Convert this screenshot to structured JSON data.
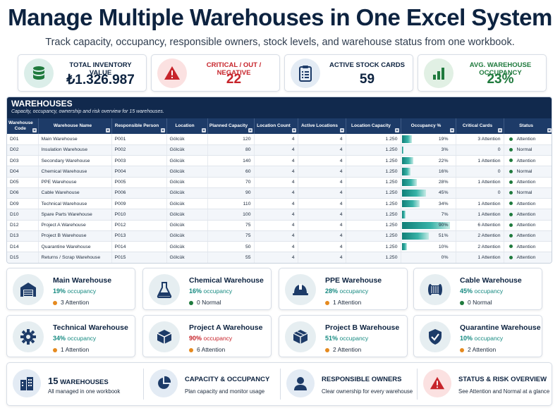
{
  "header": {
    "title": "Manage Multiple Warehouses in One Excel System",
    "subtitle": "Track capacity, occupancy, responsible owners, stock levels, and warehouse status from one workbook."
  },
  "kpis": [
    {
      "label": "TOTAL INVENTORY VALUE",
      "value": "₺1.326.987",
      "icon": "database-icon",
      "color": "#0d2340"
    },
    {
      "label": "CRITICAL / OUT / NEGATIVE",
      "value": "22",
      "icon": "warning-icon",
      "color": "#c7242b"
    },
    {
      "label": "ACTIVE STOCK CARDS",
      "value": "59",
      "icon": "clipboard-icon",
      "color": "#0d2340"
    },
    {
      "label": "AVG. WAREHOUSE OCCUPANCY",
      "value": "23%",
      "icon": "bar-chart-icon",
      "color": "#1f7a3d"
    }
  ],
  "table": {
    "title": "WAREHOUSES",
    "subtitle": "Capacity, occupancy, ownership and risk overview for 15 warehouses.",
    "columns": [
      "Warehouse Code",
      "Warehouse Name",
      "Responsible Person",
      "Location",
      "Planned Capacity",
      "Location Count",
      "Active Locations",
      "Location Capacity",
      "Occupancy %",
      "Critical Cards",
      "Status"
    ],
    "rows": [
      {
        "code": "D01",
        "name": "Main Warehouse",
        "person": "P001",
        "location": "Gölcük",
        "planned": "120",
        "loc_count": "4",
        "active": "4",
        "loc_cap": "1.250",
        "occ": "19%",
        "occ_value": 0.19,
        "critical": "3 Attention",
        "status": "Attention"
      },
      {
        "code": "D02",
        "name": "Insulation Warehouse",
        "person": "P002",
        "location": "Gölcük",
        "planned": "80",
        "loc_count": "4",
        "active": "4",
        "loc_cap": "1.250",
        "occ": "3%",
        "occ_value": 0.03,
        "critical": "0",
        "status": "Normal"
      },
      {
        "code": "D03",
        "name": "Secondary Warehouse",
        "person": "P003",
        "location": "Gölcük",
        "planned": "140",
        "loc_count": "4",
        "active": "4",
        "loc_cap": "1.250",
        "occ": "22%",
        "occ_value": 0.22,
        "critical": "1 Attention",
        "status": "Attention"
      },
      {
        "code": "D04",
        "name": "Chemical Warehouse",
        "person": "P004",
        "location": "Gölcük",
        "planned": "60",
        "loc_count": "4",
        "active": "4",
        "loc_cap": "1.250",
        "occ": "16%",
        "occ_value": 0.16,
        "critical": "0",
        "status": "Normal"
      },
      {
        "code": "D05",
        "name": "PPE Warehouse",
        "person": "P005",
        "location": "Gölcük",
        "planned": "70",
        "loc_count": "4",
        "active": "4",
        "loc_cap": "1.250",
        "occ": "28%",
        "occ_value": 0.28,
        "critical": "1 Attention",
        "status": "Attention"
      },
      {
        "code": "D06",
        "name": "Cable Warehouse",
        "person": "P006",
        "location": "Gölcük",
        "planned": "90",
        "loc_count": "4",
        "active": "4",
        "loc_cap": "1.250",
        "occ": "45%",
        "occ_value": 0.45,
        "critical": "0",
        "status": "Normal"
      },
      {
        "code": "D09",
        "name": "Technical Warehouse",
        "person": "P009",
        "location": "Gölcük",
        "planned": "110",
        "loc_count": "4",
        "active": "4",
        "loc_cap": "1.250",
        "occ": "34%",
        "occ_value": 0.34,
        "critical": "1 Attention",
        "status": "Attention"
      },
      {
        "code": "D10",
        "name": "Spare Parts Warehouse",
        "person": "P010",
        "location": "Gölcük",
        "planned": "100",
        "loc_count": "4",
        "active": "4",
        "loc_cap": "1.250",
        "occ": "7%",
        "occ_value": 0.07,
        "critical": "1 Attention",
        "status": "Attention"
      },
      {
        "code": "D12",
        "name": "Project A Warehouse",
        "person": "P012",
        "location": "Gölcük",
        "planned": "75",
        "loc_count": "4",
        "active": "4",
        "loc_cap": "1.250",
        "occ": "90%",
        "occ_value": 0.9,
        "critical": "6 Attention",
        "status": "Attention"
      },
      {
        "code": "D13",
        "name": "Project B Warehouse",
        "person": "P013",
        "location": "Gölcük",
        "planned": "75",
        "loc_count": "4",
        "active": "4",
        "loc_cap": "1.250",
        "occ": "51%",
        "occ_value": 0.51,
        "critical": "2 Attention",
        "status": "Attention"
      },
      {
        "code": "D14",
        "name": "Quarantine Warehouse",
        "person": "P014",
        "location": "Gölcük",
        "planned": "50",
        "loc_count": "4",
        "active": "4",
        "loc_cap": "1.250",
        "occ": "10%",
        "occ_value": 0.1,
        "critical": "2 Attention",
        "status": "Attention"
      },
      {
        "code": "D15",
        "name": "Returns / Scrap Warehouse",
        "person": "P015",
        "location": "Gölcük",
        "planned": "55",
        "loc_count": "4",
        "active": "4",
        "loc_cap": "1.250",
        "occ": "0%",
        "occ_value": 0.0,
        "critical": "1 Attention",
        "status": "Attention"
      }
    ]
  },
  "cards": [
    {
      "name": "Main Warehouse",
      "occ": "19%",
      "occ_label": "occupancy",
      "status": "3 Attention",
      "icon": "warehouse-icon",
      "status_color": "#e58a1f",
      "occ_color": "#168a81"
    },
    {
      "name": "Chemical Warehouse",
      "occ": "16%",
      "occ_label": "occupancy",
      "status": "0 Normal",
      "icon": "flask-icon",
      "status_color": "#1f7a3d",
      "occ_color": "#168a81"
    },
    {
      "name": "PPE Warehouse",
      "occ": "28%",
      "occ_label": "occupancy",
      "status": "1 Attention",
      "icon": "helmet-icon",
      "status_color": "#e58a1f",
      "occ_color": "#168a81"
    },
    {
      "name": "Cable Warehouse",
      "occ": "45%",
      "occ_label": "occupancy",
      "status": "0 Normal",
      "icon": "cable-reel-icon",
      "status_color": "#1f7a3d",
      "occ_color": "#168a81"
    },
    {
      "name": "Technical Warehouse",
      "occ": "34%",
      "occ_label": "occupancy",
      "status": "1 Attention",
      "icon": "gear-icon",
      "status_color": "#e58a1f",
      "occ_color": "#168a81"
    },
    {
      "name": "Project A Warehouse",
      "occ": "90%",
      "occ_label": "occupancy",
      "status": "6 Attention",
      "icon": "box-icon",
      "status_color": "#e58a1f",
      "occ_color": "#c7242b"
    },
    {
      "name": "Project B Warehouse",
      "occ": "51%",
      "occ_label": "occupancy",
      "status": "2 Attention",
      "icon": "cube-icon",
      "status_color": "#e58a1f",
      "occ_color": "#168a81"
    },
    {
      "name": "Quarantine Warehouse",
      "occ": "10%",
      "occ_label": "occupancy",
      "status": "2 Attention",
      "icon": "shield-check-icon",
      "status_color": "#e58a1f",
      "occ_color": "#168a81"
    }
  ],
  "footer": [
    {
      "count": "15",
      "title": "WAREHOUSES",
      "desc": "All managed in one workbook",
      "icon": "buildings-icon"
    },
    {
      "count": "",
      "title": "CAPACITY & OCCUPANCY",
      "desc": "Plan capacity and monitor usage",
      "icon": "pie-chart-icon"
    },
    {
      "count": "",
      "title": "RESPONSIBLE OWNERS",
      "desc": "Clear ownership for every warehouse",
      "icon": "person-icon"
    },
    {
      "count": "",
      "title": "STATUS & RISK OVERVIEW",
      "desc": "See Attention and Normal at a glance",
      "icon": "alert-icon"
    }
  ],
  "colors": {
    "navy": "#11294d",
    "teal": "#168a81",
    "red": "#c7242b",
    "green": "#1f7a3d",
    "orange": "#e58a1f"
  }
}
